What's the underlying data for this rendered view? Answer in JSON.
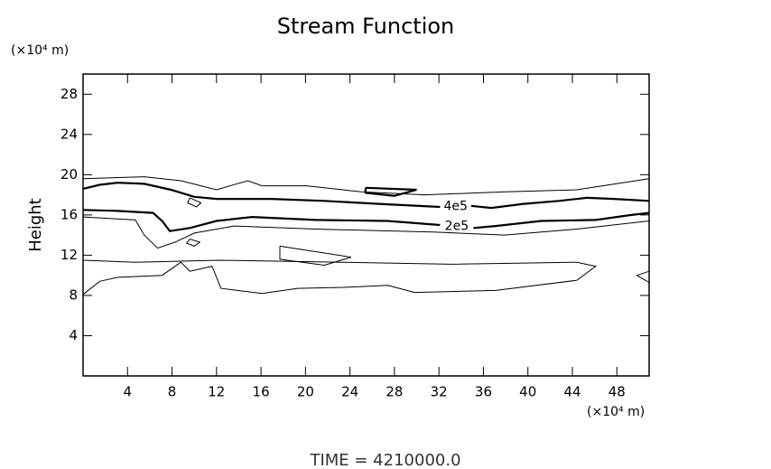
{
  "chart_data": {
    "type": "contour",
    "title": "Stream Function",
    "y_unit_label": "(×10⁴ m)",
    "x_unit_label": "(×10⁴ m)",
    "ylabel": "Height",
    "footer": "TIME = 4210000.0",
    "xlim": [
      0,
      50.9
    ],
    "ylim": [
      0,
      30
    ],
    "xticks": [
      4,
      8,
      12,
      16,
      20,
      24,
      28,
      32,
      36,
      40,
      44,
      48
    ],
    "yticks": [
      4,
      8,
      12,
      16,
      20,
      24,
      28
    ],
    "color": "#000000",
    "contours": [
      {
        "label": "4e5",
        "weight": "thick",
        "x": [
          0,
          1.5,
          3.1,
          5.5,
          7.9,
          10,
          12,
          16.9,
          21.7,
          26.6,
          32.1,
          null,
          34.9,
          36.7,
          39.6,
          42.8,
          45.3,
          47.7,
          50.9
        ],
        "y": [
          18.6,
          19.0,
          19.2,
          19.1,
          18.5,
          17.8,
          17.6,
          17.6,
          17.4,
          17.1,
          16.8,
          null,
          16.9,
          16.7,
          17.1,
          17.4,
          17.7,
          17.6,
          17.4
        ]
      },
      {
        "label": "2e5",
        "weight": "thick",
        "x": [
          0,
          3.1,
          6.3,
          7.1,
          7.8,
          9.6,
          12,
          15.2,
          20.9,
          27.4,
          32.1,
          null,
          35.1,
          37.1,
          41.2,
          46.1,
          49.3,
          50.9
        ],
        "y": [
          16.5,
          16.4,
          16.2,
          15.4,
          14.4,
          14.7,
          15.4,
          15.8,
          15.5,
          15.4,
          15.0,
          null,
          14.7,
          14.9,
          15.4,
          15.5,
          16.0,
          16.2
        ]
      },
      {
        "weight": "thin",
        "x": [
          0,
          5.5,
          8.8,
          12,
          14.8,
          16.1,
          20.1,
          25,
          30.7,
          38,
          44.4,
          50.9
        ],
        "y": [
          19.6,
          19.8,
          19.4,
          18.5,
          19.4,
          18.9,
          18.9,
          18.3,
          18.0,
          18.3,
          18.5,
          19.6
        ]
      },
      {
        "weight": "thin",
        "x": [
          0,
          4.7,
          5.5,
          6.7,
          8.3,
          10,
          13.6,
          20.9,
          31.5,
          37.9,
          44.4,
          50.9
        ],
        "y": [
          15.8,
          15.5,
          14.0,
          12.7,
          13.3,
          14.2,
          14.9,
          14.6,
          14.3,
          14.0,
          14.6,
          15.4
        ]
      },
      {
        "weight": "thin",
        "x": [
          0,
          1.5,
          3.1,
          7.1,
          8.8,
          9.6,
          11.6,
          12.4,
          16.1,
          19.3,
          23.4,
          27.4,
          29.8,
          37.1,
          44.4,
          46.1,
          44.4,
          33.1,
          23.4,
          12.2,
          4.7,
          0
        ],
        "y": [
          8.1,
          9.4,
          9.8,
          10.0,
          11.3,
          10.4,
          10.9,
          8.7,
          8.2,
          8.7,
          8.8,
          9.0,
          8.3,
          8.5,
          9.5,
          10.9,
          11.3,
          11.1,
          11.3,
          11.5,
          11.3,
          11.5
        ]
      },
      {
        "weight": "thin",
        "x": [
          17.7,
          24.1,
          21.7,
          17.7,
          17.7
        ],
        "y": [
          12.9,
          11.8,
          11.0,
          11.6,
          12.9
        ]
      },
      {
        "weight": "thick",
        "x": [
          25.4,
          30.0,
          28.0,
          25.4,
          25.4
        ],
        "y": [
          18.7,
          18.5,
          17.9,
          18.2,
          18.7
        ]
      },
      {
        "weight": "thin",
        "x": [
          9.6,
          10.6,
          10.2,
          9.4,
          9.6
        ],
        "y": [
          17.7,
          17.2,
          16.8,
          17.2,
          17.7
        ]
      },
      {
        "weight": "thin",
        "x": [
          9.6,
          10.5,
          10.0,
          9.3,
          9.6
        ],
        "y": [
          13.6,
          13.3,
          12.9,
          13.2,
          13.6
        ]
      },
      {
        "weight": "thin",
        "x": [
          50.9,
          49.8,
          50.9
        ],
        "y": [
          10.4,
          10.0,
          9.3
        ]
      }
    ]
  }
}
